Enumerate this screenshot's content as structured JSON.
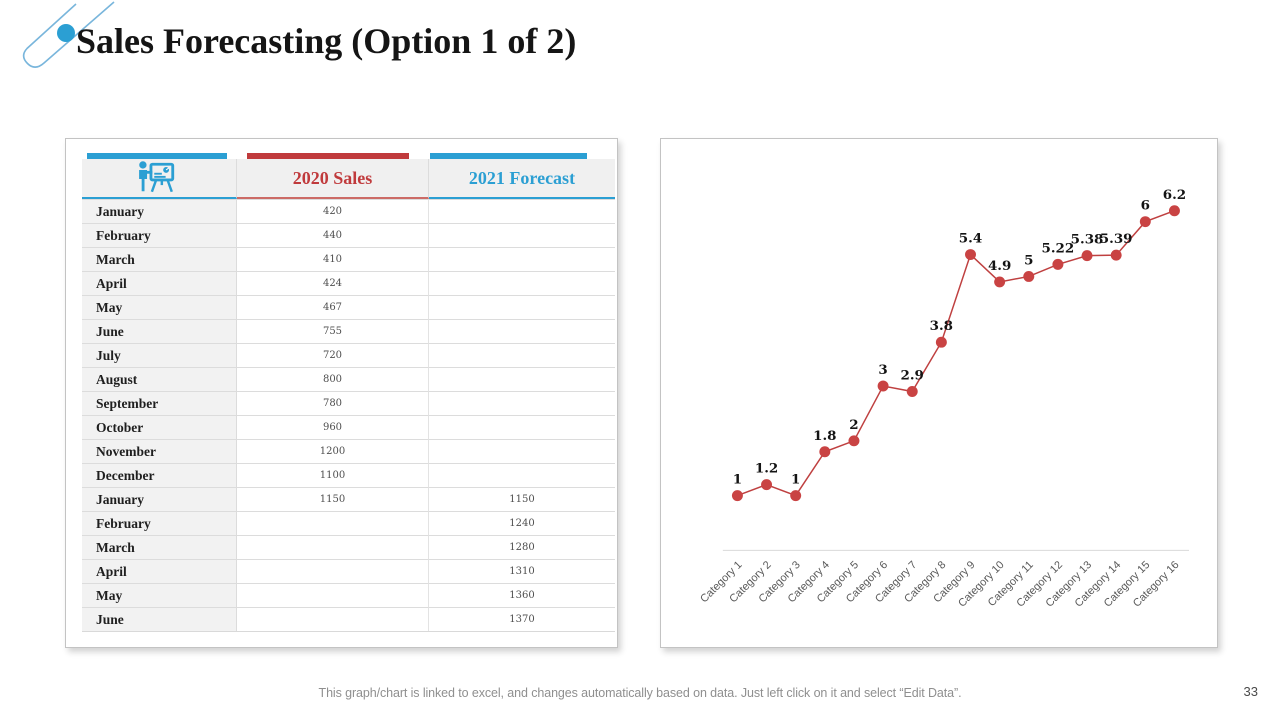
{
  "slide": {
    "title": "Sales Forecasting (Option 1 of 2)",
    "footer_note": "This graph/chart is linked to excel, and changes automatically based on data. Just left click on it and select “Edit Data”.",
    "page_number": "33"
  },
  "colors": {
    "blue": "#2b9fd3",
    "red": "#c03a3c",
    "chart-line": "#bf4040",
    "chart-marker": "#c94343"
  },
  "table": {
    "columns": [
      {
        "label": "",
        "icon": "presentation-board-icon",
        "accent": "#2b9fd3"
      },
      {
        "label": "2020 Sales",
        "accent": "#c03a3c"
      },
      {
        "label": "2021 Forecast",
        "accent": "#2b9fd3"
      }
    ],
    "rows": [
      {
        "month": "January",
        "sales": "420",
        "forecast": ""
      },
      {
        "month": "February",
        "sales": "440",
        "forecast": ""
      },
      {
        "month": "March",
        "sales": "410",
        "forecast": ""
      },
      {
        "month": "April",
        "sales": "424",
        "forecast": ""
      },
      {
        "month": "May",
        "sales": "467",
        "forecast": ""
      },
      {
        "month": "June",
        "sales": "755",
        "forecast": ""
      },
      {
        "month": "July",
        "sales": "720",
        "forecast": ""
      },
      {
        "month": "August",
        "sales": "800",
        "forecast": ""
      },
      {
        "month": "September",
        "sales": "780",
        "forecast": ""
      },
      {
        "month": "October",
        "sales": "960",
        "forecast": ""
      },
      {
        "month": "November",
        "sales": "1200",
        "forecast": ""
      },
      {
        "month": "December",
        "sales": "1100",
        "forecast": ""
      },
      {
        "month": "January",
        "sales": "1150",
        "forecast": "1150"
      },
      {
        "month": "February",
        "sales": "",
        "forecast": "1240"
      },
      {
        "month": "March",
        "sales": "",
        "forecast": "1280"
      },
      {
        "month": "April",
        "sales": "",
        "forecast": "1310"
      },
      {
        "month": "May",
        "sales": "",
        "forecast": "1360"
      },
      {
        "month": "June",
        "sales": "",
        "forecast": "1370"
      }
    ]
  },
  "chart_data": {
    "type": "line",
    "categories": [
      "Category 1",
      "Category 2",
      "Category 3",
      "Category 4",
      "Category 5",
      "Category 6",
      "Category 7",
      "Category 8",
      "Category 9",
      "Category 10",
      "Category 11",
      "Category 12",
      "Category 13",
      "Category 14",
      "Category 15",
      "Category 16"
    ],
    "series": [
      {
        "values": [
          1,
          1.2,
          1,
          1.8,
          2,
          3,
          2.9,
          3.8,
          5.4,
          4.9,
          5,
          5.22,
          5.38,
          5.39,
          6,
          6.2
        ]
      }
    ],
    "data_labels": [
      "1",
      "1.2",
      "1",
      "1.8",
      "2",
      "3",
      "2.9",
      "3.8",
      "5.4",
      "4.9",
      "5",
      "5.22",
      "5.38",
      "5.39",
      "6",
      "6.2"
    ],
    "ylim": [
      0,
      7
    ],
    "grid": false,
    "legend": "none",
    "line_color": "#bf4040",
    "marker_color": "#c94343",
    "axis_color": "#d9d9d9",
    "tick_label_color": "#595959",
    "data_label_color": "#141414"
  }
}
